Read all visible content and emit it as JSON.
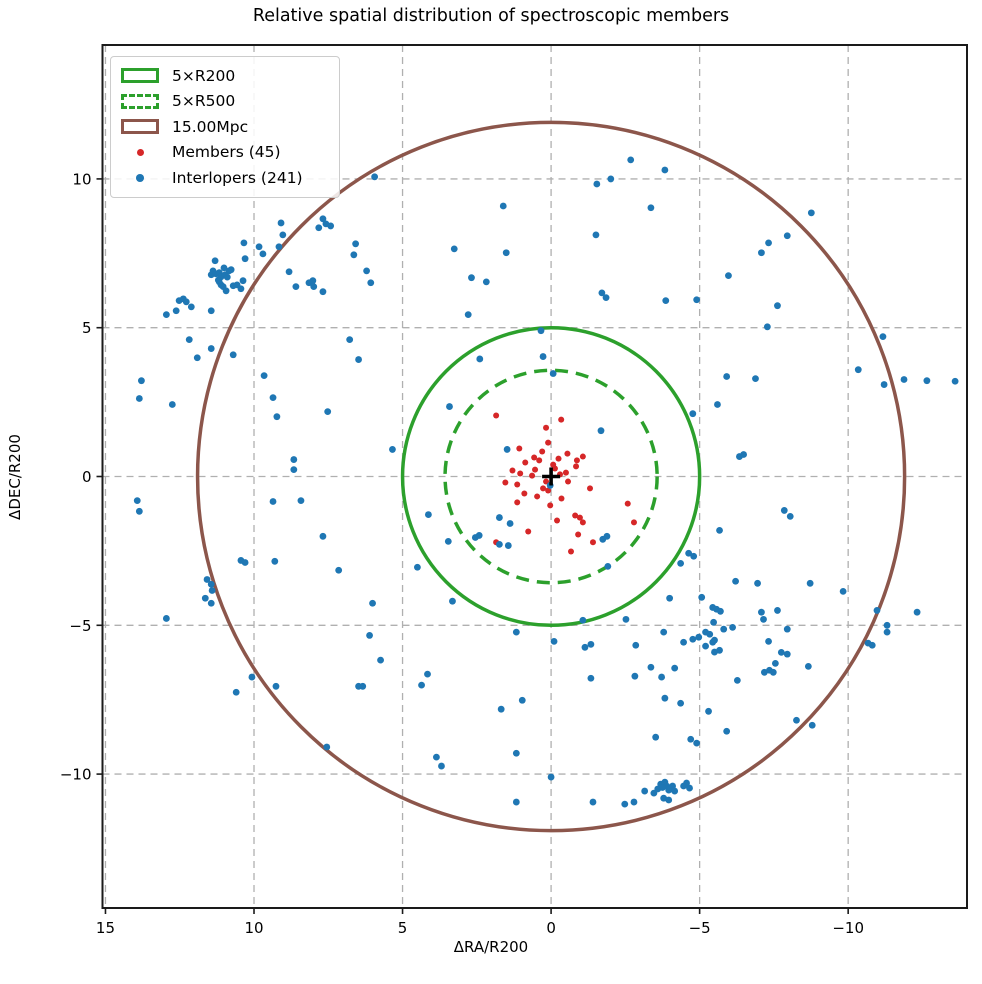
{
  "chart_data": {
    "type": "scatter",
    "title": "Relative spatial distribution of spectroscopic members",
    "xlabel": "ΔRA/R200",
    "ylabel": "ΔDEC/R200",
    "xlim": [
      15.1,
      -14.0
    ],
    "ylim": [
      -14.5,
      14.5
    ],
    "x_ticks": [
      15,
      10,
      5,
      0,
      -5,
      -10
    ],
    "y_ticks": [
      10,
      5,
      0,
      -5,
      -10
    ],
    "grid": true,
    "legend_position": "upper left",
    "colors": {
      "members": "#d62728",
      "interlopers": "#1f77b4",
      "r200_circle": "#2ca02c",
      "r500_circle": "#2ca02c",
      "mpc_circle": "#8c564b",
      "gridline": "#b0b0b0",
      "spine": "#1a1a1a",
      "center_marker": "#000000"
    },
    "circles": [
      {
        "label": "5×R200",
        "radius": 5.0,
        "style": "solid",
        "color": "#2ca02c"
      },
      {
        "label": "5×R500",
        "radius": 3.57,
        "style": "dashed",
        "color": "#2ca02c"
      },
      {
        "label": "15.00Mpc",
        "radius": 11.9,
        "style": "solid",
        "color": "#8c564b"
      }
    ],
    "center_marker": {
      "symbol": "+",
      "x": 0,
      "y": 0,
      "color": "#000000"
    },
    "series": [
      {
        "name": "Members (45)",
        "color": "#d62728",
        "marker_radius": 3,
        "points": [
          [
            1.85,
            2.05
          ],
          [
            -0.34,
            1.91
          ],
          [
            0.17,
            1.64
          ],
          [
            0.1,
            1.14
          ],
          [
            1.07,
            0.94
          ],
          [
            0.57,
            0.64
          ],
          [
            0.4,
            0.54
          ],
          [
            0.87,
            0.47
          ],
          [
            0.54,
            0.23
          ],
          [
            -0.87,
            0.54
          ],
          [
            -1.07,
            0.67
          ],
          [
            -0.84,
            0.34
          ],
          [
            -0.07,
            0.4
          ],
          [
            -0.13,
            0.27
          ],
          [
            1.04,
            0.1
          ],
          [
            0.64,
            0.03
          ],
          [
            1.54,
            -0.2
          ],
          [
            1.14,
            -0.27
          ],
          [
            0.17,
            -0.17
          ],
          [
            0.27,
            -0.4
          ],
          [
            0.1,
            -0.47
          ],
          [
            -0.3,
            0.07
          ],
          [
            -0.5,
            0.13
          ],
          [
            -0.57,
            -0.17
          ],
          [
            -1.31,
            -0.4
          ],
          [
            1.14,
            -0.87
          ],
          [
            0.03,
            -0.97
          ],
          [
            -2.58,
            -0.91
          ],
          [
            -0.2,
            -1.48
          ],
          [
            -0.81,
            -1.31
          ],
          [
            -0.97,
            -1.38
          ],
          [
            -1.07,
            -1.54
          ],
          [
            -2.79,
            -1.54
          ],
          [
            0.77,
            -1.85
          ],
          [
            1.85,
            -2.21
          ],
          [
            -0.91,
            -1.95
          ],
          [
            -1.41,
            -2.21
          ],
          [
            -0.67,
            -2.52
          ],
          [
            0.3,
            0.84
          ],
          [
            -0.25,
            0.6
          ],
          [
            0.47,
            -0.67
          ],
          [
            -0.55,
            0.77
          ],
          [
            1.3,
            0.2
          ],
          [
            0.9,
            -0.57
          ],
          [
            -0.35,
            -0.74
          ]
        ]
      },
      {
        "name": "Interlopers (241)",
        "color": "#1f77b4",
        "marker_radius": 3.4,
        "points": [
          [
            5.94,
            10.07
          ],
          [
            9.09,
            8.52
          ],
          [
            9.03,
            8.12
          ],
          [
            7.82,
            8.36
          ],
          [
            7.68,
            8.66
          ],
          [
            7.58,
            8.49
          ],
          [
            7.42,
            8.42
          ],
          [
            10.34,
            7.85
          ],
          [
            9.83,
            7.72
          ],
          [
            9.7,
            7.48
          ],
          [
            9.16,
            7.72
          ],
          [
            10.3,
            7.32
          ],
          [
            11.31,
            7.25
          ],
          [
            11.38,
            6.91
          ],
          [
            11.44,
            6.78
          ],
          [
            11.28,
            6.81
          ],
          [
            11.17,
            6.85
          ],
          [
            11.11,
            6.71
          ],
          [
            11.01,
            7.01
          ],
          [
            10.97,
            6.78
          ],
          [
            10.84,
            6.91
          ],
          [
            10.77,
            6.95
          ],
          [
            11.17,
            6.54
          ],
          [
            11.11,
            6.44
          ],
          [
            11.04,
            6.38
          ],
          [
            10.94,
            6.24
          ],
          [
            10.7,
            6.41
          ],
          [
            10.57,
            6.44
          ],
          [
            8.82,
            6.88
          ],
          [
            8.59,
            6.38
          ],
          [
            8.15,
            6.51
          ],
          [
            8.02,
            6.58
          ],
          [
            7.99,
            6.38
          ],
          [
            7.68,
            6.21
          ],
          [
            10.37,
            6.58
          ],
          [
            10.44,
            6.31
          ],
          [
            12.52,
            5.91
          ],
          [
            12.38,
            5.97
          ],
          [
            12.28,
            5.87
          ],
          [
            12.11,
            5.7
          ],
          [
            12.62,
            5.57
          ],
          [
            12.95,
            5.44
          ],
          [
            11.44,
            5.57
          ],
          [
            6.58,
            7.82
          ],
          [
            6.64,
            7.45
          ],
          [
            6.21,
            6.91
          ],
          [
            6.07,
            6.51
          ],
          [
            -2.68,
            10.64
          ],
          [
            -3.83,
            10.3
          ],
          [
            -1.54,
            9.83
          ],
          [
            -2.01,
            10.0
          ],
          [
            1.61,
            9.09
          ],
          [
            -3.36,
            9.03
          ],
          [
            -1.51,
            8.12
          ],
          [
            3.26,
            7.65
          ],
          [
            1.51,
            7.52
          ],
          [
            2.68,
            6.68
          ],
          [
            2.18,
            6.54
          ],
          [
            -1.71,
            6.17
          ],
          [
            -1.85,
            6.01
          ],
          [
            -3.86,
            5.91
          ],
          [
            2.79,
            5.44
          ],
          [
            0.34,
            4.9
          ],
          [
            -8.76,
            8.86
          ],
          [
            -7.95,
            8.09
          ],
          [
            -7.32,
            7.85
          ],
          [
            -7.08,
            7.52
          ],
          [
            -5.97,
            6.75
          ],
          [
            -4.9,
            5.94
          ],
          [
            -7.62,
            5.74
          ],
          [
            -7.28,
            5.03
          ],
          [
            -11.17,
            4.7
          ],
          [
            12.18,
            4.6
          ],
          [
            11.44,
            4.3
          ],
          [
            11.91,
            3.99
          ],
          [
            10.7,
            4.09
          ],
          [
            6.78,
            4.6
          ],
          [
            6.48,
            3.93
          ],
          [
            13.79,
            3.22
          ],
          [
            13.86,
            2.62
          ],
          [
            12.75,
            2.42
          ],
          [
            9.66,
            3.39
          ],
          [
            9.36,
            2.65
          ],
          [
            9.23,
            2.01
          ],
          [
            7.52,
            2.18
          ],
          [
            8.66,
            0.57
          ],
          [
            8.66,
            0.23
          ],
          [
            13.93,
            -0.81
          ],
          [
            13.86,
            -1.17
          ],
          [
            9.36,
            -0.84
          ],
          [
            8.42,
            -0.81
          ],
          [
            7.68,
            -2.01
          ],
          [
            7.15,
            -3.15
          ],
          [
            9.3,
            -2.85
          ],
          [
            10.44,
            -2.82
          ],
          [
            10.3,
            -2.89
          ],
          [
            11.58,
            -3.46
          ],
          [
            11.44,
            -3.62
          ],
          [
            11.41,
            -3.83
          ],
          [
            11.64,
            -4.09
          ],
          [
            11.44,
            -4.26
          ],
          [
            6.01,
            -4.26
          ],
          [
            12.95,
            -4.77
          ],
          [
            -10.34,
            3.59
          ],
          [
            -11.21,
            3.09
          ],
          [
            -11.88,
            3.26
          ],
          [
            -12.65,
            3.22
          ],
          [
            -5.91,
            3.36
          ],
          [
            -6.88,
            3.29
          ],
          [
            -5.6,
            2.42
          ],
          [
            -4.77,
            2.11
          ],
          [
            -6.34,
            0.67
          ],
          [
            -6.48,
            0.74
          ],
          [
            -7.85,
            -1.14
          ],
          [
            -8.05,
            -1.34
          ],
          [
            -5.67,
            -1.81
          ],
          [
            -4.63,
            -2.58
          ],
          [
            -4.8,
            -2.68
          ],
          [
            -4.36,
            -2.92
          ],
          [
            -6.21,
            -3.52
          ],
          [
            -6.95,
            -3.59
          ],
          [
            -8.72,
            -3.59
          ],
          [
            -9.83,
            -3.86
          ],
          [
            -5.07,
            -4.06
          ],
          [
            -5.44,
            -4.4
          ],
          [
            -5.57,
            -4.46
          ],
          [
            -5.7,
            -4.53
          ],
          [
            -5.47,
            -4.9
          ],
          [
            -7.08,
            -4.56
          ],
          [
            -7.15,
            -4.8
          ],
          [
            -7.62,
            -4.5
          ],
          [
            -10.97,
            -4.5
          ],
          [
            -12.32,
            -4.56
          ],
          [
            -11.31,
            -5.0
          ],
          [
            -5.81,
            -5.13
          ],
          [
            -6.11,
            -5.07
          ],
          [
            -7.95,
            -5.13
          ],
          [
            6.11,
            -5.34
          ],
          [
            5.74,
            -6.17
          ],
          [
            10.07,
            -6.74
          ],
          [
            9.26,
            -7.05
          ],
          [
            6.48,
            -7.05
          ],
          [
            6.34,
            -7.05
          ],
          [
            10.6,
            -7.25
          ],
          [
            7.55,
            -9.09
          ],
          [
            1.17,
            -5.23
          ],
          [
            -0.1,
            -5.54
          ],
          [
            -1.14,
            -5.74
          ],
          [
            -1.34,
            -5.64
          ],
          [
            -2.85,
            -5.67
          ],
          [
            -3.79,
            -5.23
          ],
          [
            4.16,
            -6.64
          ],
          [
            4.36,
            -7.01
          ],
          [
            -1.34,
            -6.78
          ],
          [
            -2.82,
            -6.71
          ],
          [
            -3.36,
            -6.41
          ],
          [
            -3.72,
            -6.74
          ],
          [
            -4.16,
            -6.44
          ],
          [
            -3.83,
            -7.45
          ],
          [
            0.97,
            -7.52
          ],
          [
            1.68,
            -7.82
          ],
          [
            -3.52,
            -8.76
          ],
          [
            1.17,
            -9.3
          ],
          [
            3.86,
            -9.43
          ],
          [
            3.69,
            -9.73
          ],
          [
            0.0,
            -10.1
          ],
          [
            1.17,
            -10.94
          ],
          [
            -1.41,
            -10.94
          ],
          [
            -2.48,
            -11.01
          ],
          [
            -2.79,
            -10.94
          ],
          [
            -3.15,
            -10.57
          ],
          [
            -3.46,
            -10.64
          ],
          [
            -3.59,
            -10.5
          ],
          [
            -3.69,
            -10.34
          ],
          [
            -3.83,
            -10.27
          ],
          [
            -3.89,
            -10.4
          ],
          [
            -3.96,
            -10.54
          ],
          [
            -4.09,
            -10.4
          ],
          [
            -4.16,
            -10.57
          ],
          [
            -3.79,
            -10.81
          ],
          [
            -3.96,
            -10.87
          ],
          [
            -4.46,
            -5.57
          ],
          [
            -4.77,
            -5.47
          ],
          [
            -4.97,
            -5.4
          ],
          [
            -5.2,
            -5.23
          ],
          [
            -5.34,
            -5.3
          ],
          [
            -5.44,
            -5.57
          ],
          [
            -5.5,
            -5.5
          ],
          [
            -5.67,
            -5.84
          ],
          [
            -7.32,
            -5.54
          ],
          [
            -7.75,
            -5.91
          ],
          [
            -7.95,
            -5.97
          ],
          [
            -7.18,
            -6.58
          ],
          [
            -7.35,
            -6.51
          ],
          [
            -7.48,
            -6.58
          ],
          [
            -7.55,
            -6.28
          ],
          [
            -6.27,
            -6.85
          ],
          [
            -8.66,
            -6.38
          ],
          [
            -8.26,
            -8.19
          ],
          [
            -8.79,
            -8.36
          ],
          [
            -4.36,
            -7.62
          ],
          [
            -5.3,
            -7.89
          ],
          [
            -5.91,
            -8.56
          ],
          [
            -4.7,
            -8.83
          ],
          [
            -4.9,
            -8.96
          ],
          [
            -10.67,
            -5.6
          ],
          [
            -10.81,
            -5.67
          ],
          [
            -11.31,
            -5.23
          ],
          [
            -4.56,
            -10.3
          ],
          [
            -4.46,
            -10.4
          ],
          [
            -4.66,
            -10.47
          ],
          [
            2.4,
            3.95
          ],
          [
            -0.07,
            3.46
          ],
          [
            3.42,
            2.35
          ],
          [
            -1.68,
            1.54
          ],
          [
            1.48,
            0.91
          ],
          [
            0.03,
            -0.3
          ],
          [
            1.74,
            -1.38
          ],
          [
            1.38,
            -1.58
          ],
          [
            2.55,
            -2.05
          ],
          [
            2.42,
            -1.98
          ],
          [
            3.46,
            -2.18
          ],
          [
            -1.74,
            -2.11
          ],
          [
            -1.88,
            -2.01
          ],
          [
            1.74,
            -2.28
          ],
          [
            1.44,
            -2.32
          ],
          [
            -1.91,
            -3.02
          ],
          [
            5.34,
            0.91
          ],
          [
            4.13,
            -1.28
          ],
          [
            4.5,
            -3.05
          ],
          [
            3.32,
            -4.19
          ],
          [
            -1.07,
            -4.83
          ],
          [
            -2.52,
            -4.8
          ],
          [
            -3.99,
            -4.09
          ],
          [
            0.27,
            4.03
          ],
          [
            11.2,
            6.6
          ],
          [
            10.9,
            6.7
          ],
          [
            -5.2,
            -5.7
          ],
          [
            -5.5,
            -5.9
          ],
          [
            -3.75,
            -10.45
          ],
          [
            -13.6,
            3.2
          ]
        ]
      }
    ]
  }
}
